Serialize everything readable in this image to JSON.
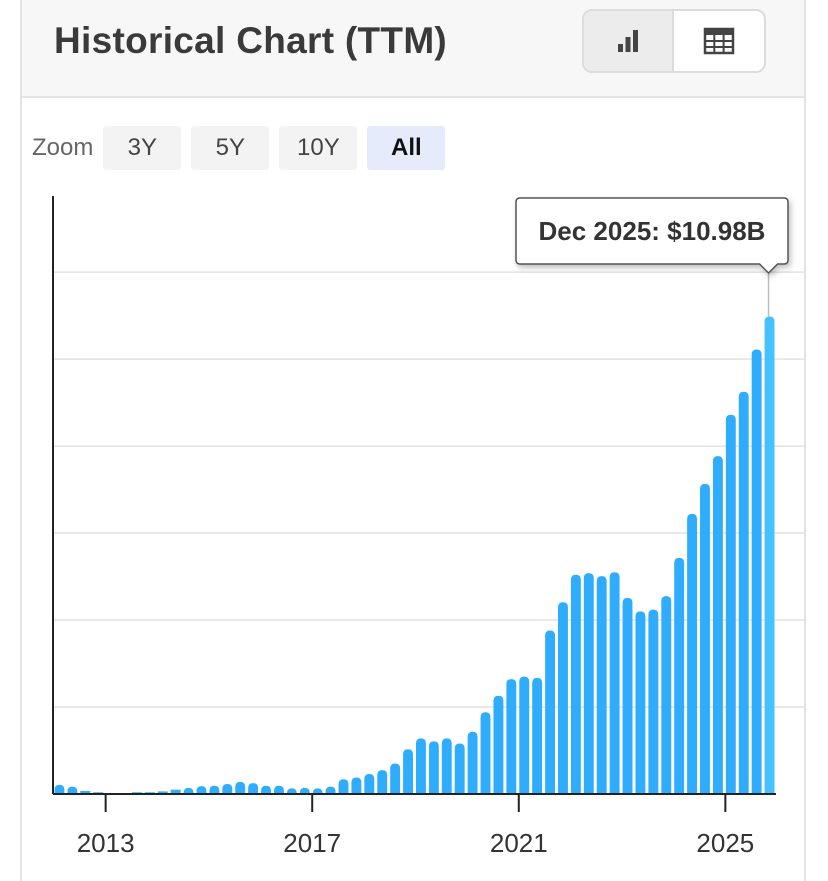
{
  "header": {
    "title": "Historical Chart (TTM)",
    "view_toggle": [
      {
        "icon": "bar-chart-icon",
        "active": true
      },
      {
        "icon": "table-icon",
        "active": false
      }
    ]
  },
  "zoom": {
    "label": "Zoom",
    "options": [
      "3Y",
      "5Y",
      "10Y",
      "All"
    ],
    "selected": "All"
  },
  "chart_data": {
    "type": "bar",
    "title": "Historical Chart (TTM)",
    "xlabel": "",
    "ylabel": "",
    "ylim": [
      0,
      13.75
    ],
    "grid": true,
    "x_tick_labels": [
      "2013",
      "2017",
      "2021",
      "2025"
    ],
    "x_tick_years": [
      2013,
      2017,
      2021,
      2025
    ],
    "bar_color": "#2fadfc",
    "highlight_color": "#46c0ff",
    "tooltip": {
      "label": "Dec 2025: $10.98B",
      "index": 55
    },
    "start_year": 2012.0,
    "step_years": 0.25,
    "values": [
      0.21,
      0.17,
      0.07,
      0.04,
      0.01,
      0.0,
      0.04,
      0.04,
      0.06,
      0.1,
      0.14,
      0.18,
      0.19,
      0.23,
      0.28,
      0.25,
      0.19,
      0.19,
      0.13,
      0.14,
      0.13,
      0.17,
      0.34,
      0.38,
      0.46,
      0.55,
      0.7,
      1.03,
      1.28,
      1.21,
      1.28,
      1.16,
      1.43,
      1.88,
      2.26,
      2.64,
      2.7,
      2.67,
      3.76,
      4.41,
      5.04,
      5.08,
      5.01,
      5.1,
      4.51,
      4.2,
      4.24,
      4.55,
      5.43,
      6.44,
      7.13,
      7.77,
      8.72,
      9.25,
      10.22,
      10.98
    ]
  }
}
